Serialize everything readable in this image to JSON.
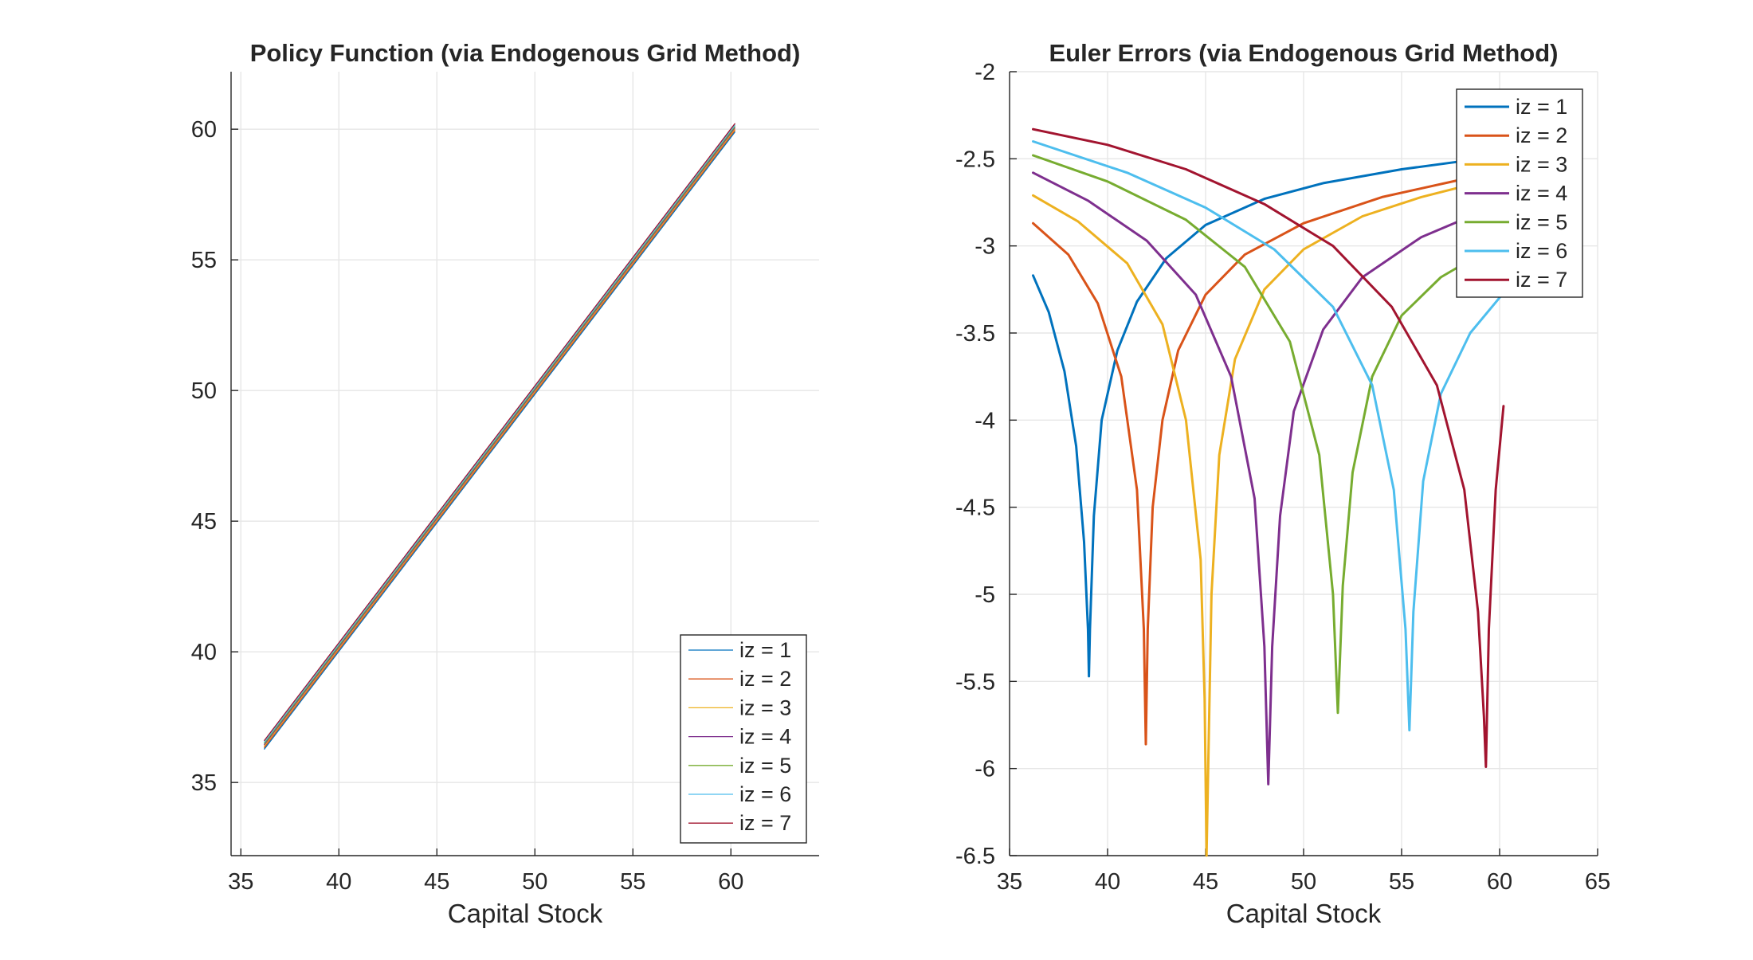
{
  "figure": {
    "background": "#ffffff"
  },
  "chart_data": [
    {
      "type": "line",
      "title": "Policy Function (via Endogenous Grid Method)",
      "xlabel": "Capital Stock",
      "ylabel": "",
      "xlim": [
        34.5,
        64.5
      ],
      "ylim": [
        32.2,
        62.2
      ],
      "xticks": [
        35,
        40,
        45,
        50,
        55,
        60
      ],
      "yticks": [
        35,
        40,
        45,
        50,
        55,
        60
      ],
      "grid": true,
      "box": false,
      "legend": "bottom-right",
      "line_width": 1.3,
      "series": [
        {
          "name": "iz = 1",
          "color": "#0072BD",
          "x": [
            36.2,
            60.2
          ],
          "y": [
            36.28,
            59.89
          ]
        },
        {
          "name": "iz = 2",
          "color": "#D95319",
          "x": [
            36.2,
            60.2
          ],
          "y": [
            36.34,
            59.95
          ]
        },
        {
          "name": "iz = 3",
          "color": "#EDB120",
          "x": [
            36.2,
            60.2
          ],
          "y": [
            36.4,
            60.0
          ]
        },
        {
          "name": "iz = 4",
          "color": "#7E2F8E",
          "x": [
            36.2,
            60.2
          ],
          "y": [
            36.45,
            60.05
          ]
        },
        {
          "name": "iz = 5",
          "color": "#77AC30",
          "x": [
            36.2,
            60.2
          ],
          "y": [
            36.5,
            60.1
          ]
        },
        {
          "name": "iz = 6",
          "color": "#4DBEEE",
          "x": [
            36.2,
            60.2
          ],
          "y": [
            36.55,
            60.15
          ]
        },
        {
          "name": "iz = 7",
          "color": "#A2142F",
          "x": [
            36.2,
            60.2
          ],
          "y": [
            36.61,
            60.21
          ]
        }
      ]
    },
    {
      "type": "line",
      "title": "Euler Errors (via Endogenous Grid Method)",
      "xlabel": "Capital Stock",
      "ylabel": "",
      "xlim": [
        35,
        65
      ],
      "ylim": [
        -6.5,
        -2
      ],
      "xticks": [
        35,
        40,
        45,
        50,
        55,
        60,
        65
      ],
      "yticks": [
        -2,
        -2.5,
        -3,
        -3.5,
        -4,
        -4.5,
        -5,
        -5.5,
        -6,
        -6.5
      ],
      "grid": true,
      "box": false,
      "legend": "top-right",
      "line_width": 3,
      "series": [
        {
          "name": "iz = 1",
          "color": "#0072BD",
          "x": [
            36.2,
            37.0,
            37.8,
            38.4,
            38.8,
            39.0,
            39.05,
            39.1,
            39.3,
            39.7,
            40.5,
            41.5,
            43.0,
            45.0,
            48.0,
            51.0,
            55.0,
            59.0,
            60.2
          ],
          "y": [
            -3.17,
            -3.38,
            -3.72,
            -4.15,
            -4.7,
            -5.2,
            -5.47,
            -5.2,
            -4.55,
            -4.0,
            -3.6,
            -3.32,
            -3.07,
            -2.88,
            -2.73,
            -2.64,
            -2.56,
            -2.5,
            -2.48
          ]
        },
        {
          "name": "iz = 2",
          "color": "#D95319",
          "x": [
            36.2,
            38.0,
            39.5,
            40.7,
            41.5,
            41.85,
            41.95,
            42.05,
            42.3,
            42.8,
            43.6,
            45.0,
            47.0,
            50.0,
            54.0,
            58.0,
            60.2
          ],
          "y": [
            -2.87,
            -3.05,
            -3.33,
            -3.75,
            -4.4,
            -5.2,
            -5.86,
            -5.2,
            -4.5,
            -4.0,
            -3.6,
            -3.28,
            -3.05,
            -2.87,
            -2.72,
            -2.62,
            -2.58
          ]
        },
        {
          "name": "iz = 3",
          "color": "#EDB120",
          "x": [
            36.2,
            38.5,
            41.0,
            42.8,
            44.0,
            44.75,
            44.95,
            45.05,
            45.3,
            45.7,
            46.5,
            48.0,
            50.0,
            53.0,
            56.0,
            60.2
          ],
          "y": [
            -2.71,
            -2.86,
            -3.1,
            -3.45,
            -4.0,
            -4.8,
            -5.6,
            -6.5,
            -5.0,
            -4.2,
            -3.65,
            -3.25,
            -3.02,
            -2.83,
            -2.72,
            -2.6
          ]
        },
        {
          "name": "iz = 4",
          "color": "#7E2F8E",
          "x": [
            36.2,
            39.0,
            42.0,
            44.5,
            46.3,
            47.5,
            48.0,
            48.2,
            48.4,
            48.8,
            49.5,
            51.0,
            53.0,
            56.0,
            60.2
          ],
          "y": [
            -2.58,
            -2.74,
            -2.97,
            -3.28,
            -3.75,
            -4.45,
            -5.3,
            -6.09,
            -5.3,
            -4.55,
            -3.95,
            -3.48,
            -3.18,
            -2.95,
            -2.75
          ]
        },
        {
          "name": "iz = 5",
          "color": "#77AC30",
          "x": [
            36.2,
            40.0,
            44.0,
            47.0,
            49.3,
            50.8,
            51.5,
            51.75,
            52.0,
            52.5,
            53.5,
            55.0,
            57.0,
            60.2
          ],
          "y": [
            -2.48,
            -2.63,
            -2.85,
            -3.12,
            -3.55,
            -4.2,
            -5.0,
            -5.68,
            -4.95,
            -4.3,
            -3.75,
            -3.4,
            -3.18,
            -2.97
          ]
        },
        {
          "name": "iz = 6",
          "color": "#4DBEEE",
          "x": [
            36.2,
            41.0,
            45.0,
            48.5,
            51.5,
            53.5,
            54.6,
            55.2,
            55.4,
            55.6,
            56.1,
            57.0,
            58.5,
            60.2
          ],
          "y": [
            -2.4,
            -2.58,
            -2.78,
            -3.02,
            -3.35,
            -3.8,
            -4.4,
            -5.2,
            -5.78,
            -5.1,
            -4.35,
            -3.85,
            -3.5,
            -3.27
          ]
        },
        {
          "name": "iz = 7",
          "color": "#A2142F",
          "x": [
            36.2,
            40.0,
            44.0,
            48.0,
            51.5,
            54.5,
            56.8,
            58.2,
            58.9,
            59.2,
            59.3,
            59.45,
            59.8,
            60.2
          ],
          "y": [
            -2.33,
            -2.42,
            -2.56,
            -2.76,
            -3.0,
            -3.35,
            -3.8,
            -4.4,
            -5.1,
            -5.7,
            -5.99,
            -5.2,
            -4.4,
            -3.92
          ]
        }
      ]
    }
  ]
}
